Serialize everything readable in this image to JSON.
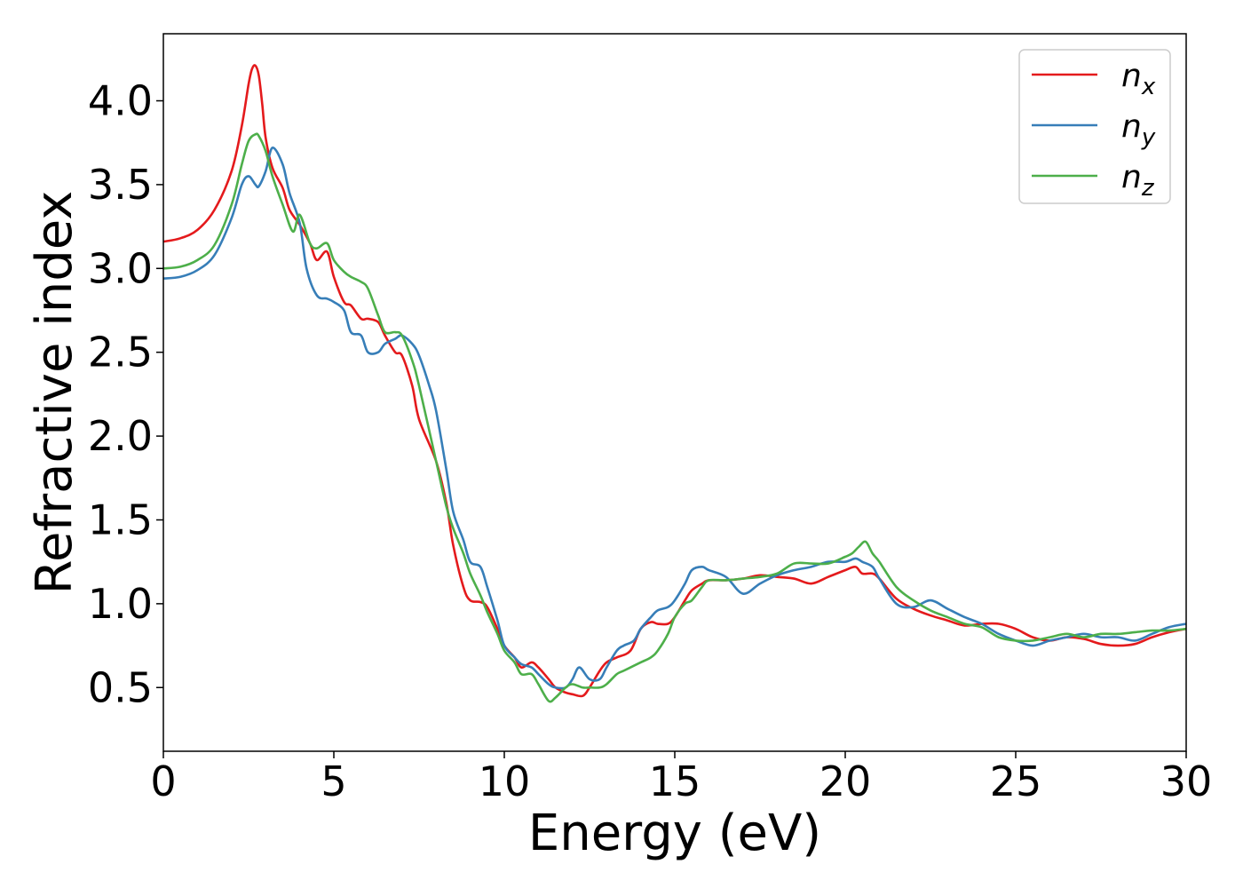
{
  "chart_data": {
    "type": "line",
    "xlabel": "Energy (eV)",
    "ylabel": "Refractive index",
    "xlim": [
      0,
      30
    ],
    "ylim": [
      0.12,
      4.4
    ],
    "xticks": [
      0,
      5,
      10,
      15,
      20,
      25,
      30
    ],
    "yticks": [
      0.5,
      1.0,
      1.5,
      2.0,
      2.5,
      3.0,
      3.5,
      4.0
    ],
    "xtick_labels": [
      "0",
      "5",
      "10",
      "15",
      "20",
      "25",
      "30"
    ],
    "ytick_labels": [
      "0.5",
      "1.0",
      "1.5",
      "2.0",
      "2.5",
      "3.0",
      "3.5",
      "4.0"
    ],
    "grid": false,
    "legend_position": "top-right",
    "series": [
      {
        "name": "n_x",
        "label_main": "n",
        "label_sub": "x",
        "color": "#e41a1c",
        "x": [
          0,
          0.5,
          1.0,
          1.5,
          2.0,
          2.3,
          2.5,
          2.6,
          2.7,
          2.8,
          2.9,
          3.0,
          3.2,
          3.5,
          3.7,
          4.0,
          4.3,
          4.5,
          4.8,
          5.0,
          5.3,
          5.5,
          5.8,
          6.0,
          6.3,
          6.5,
          6.8,
          7.0,
          7.3,
          7.5,
          8.0,
          8.3,
          8.5,
          8.8,
          9.0,
          9.3,
          9.5,
          9.8,
          10.0,
          10.3,
          10.5,
          10.8,
          11.0,
          11.3,
          11.5,
          11.8,
          12.0,
          12.3,
          12.5,
          12.8,
          13.0,
          13.3,
          13.7,
          14.0,
          14.3,
          14.5,
          14.8,
          15.0,
          15.3,
          15.5,
          15.8,
          16.0,
          16.5,
          17.0,
          17.5,
          18.0,
          18.5,
          19.0,
          19.5,
          20.0,
          20.3,
          20.5,
          20.8,
          21.0,
          21.5,
          22.0,
          22.5,
          23.0,
          23.5,
          24.0,
          24.5,
          25.0,
          25.5,
          26.0,
          26.5,
          27.0,
          27.5,
          28.0,
          28.5,
          29.0,
          29.5,
          30.0
        ],
        "y": [
          3.16,
          3.18,
          3.23,
          3.35,
          3.58,
          3.85,
          4.1,
          4.19,
          4.21,
          4.15,
          3.98,
          3.78,
          3.6,
          3.48,
          3.35,
          3.26,
          3.15,
          3.05,
          3.1,
          2.95,
          2.8,
          2.78,
          2.7,
          2.7,
          2.68,
          2.6,
          2.5,
          2.48,
          2.3,
          2.1,
          1.85,
          1.6,
          1.35,
          1.1,
          1.02,
          1.01,
          0.98,
          0.85,
          0.75,
          0.68,
          0.62,
          0.65,
          0.62,
          0.55,
          0.5,
          0.47,
          0.46,
          0.45,
          0.5,
          0.6,
          0.65,
          0.68,
          0.72,
          0.85,
          0.89,
          0.88,
          0.88,
          0.92,
          1.02,
          1.08,
          1.12,
          1.14,
          1.14,
          1.15,
          1.17,
          1.16,
          1.15,
          1.12,
          1.16,
          1.2,
          1.22,
          1.18,
          1.18,
          1.15,
          1.03,
          0.97,
          0.93,
          0.9,
          0.87,
          0.88,
          0.88,
          0.85,
          0.8,
          0.78,
          0.8,
          0.79,
          0.76,
          0.75,
          0.76,
          0.8,
          0.83,
          0.85
        ]
      },
      {
        "name": "n_y",
        "label_main": "n",
        "label_sub": "y",
        "color": "#377eb8",
        "x": [
          0,
          0.5,
          1.0,
          1.5,
          2.0,
          2.3,
          2.5,
          2.7,
          2.8,
          3.0,
          3.2,
          3.5,
          3.7,
          4.0,
          4.2,
          4.5,
          4.8,
          5.0,
          5.3,
          5.5,
          5.8,
          6.0,
          6.3,
          6.5,
          6.8,
          7.0,
          7.3,
          7.5,
          7.8,
          8.0,
          8.3,
          8.5,
          8.8,
          9.0,
          9.3,
          9.5,
          9.8,
          10.0,
          10.3,
          10.5,
          10.8,
          11.0,
          11.3,
          11.5,
          11.8,
          12.0,
          12.2,
          12.5,
          12.8,
          13.0,
          13.3,
          13.5,
          13.8,
          14.0,
          14.3,
          14.5,
          14.8,
          15.0,
          15.3,
          15.5,
          15.8,
          16.0,
          16.5,
          17.0,
          17.5,
          18.0,
          18.5,
          19.0,
          19.5,
          20.0,
          20.3,
          20.5,
          20.8,
          21.0,
          21.5,
          22.0,
          22.5,
          23.0,
          23.5,
          24.0,
          24.5,
          25.0,
          25.5,
          26.0,
          26.5,
          27.0,
          27.5,
          28.0,
          28.5,
          29.0,
          29.5,
          30.0
        ],
        "y": [
          2.94,
          2.95,
          2.99,
          3.08,
          3.3,
          3.5,
          3.55,
          3.5,
          3.49,
          3.58,
          3.72,
          3.62,
          3.45,
          3.27,
          3.0,
          2.84,
          2.82,
          2.8,
          2.75,
          2.62,
          2.6,
          2.5,
          2.5,
          2.55,
          2.58,
          2.6,
          2.55,
          2.48,
          2.3,
          2.15,
          1.8,
          1.55,
          1.38,
          1.25,
          1.22,
          1.1,
          0.9,
          0.75,
          0.68,
          0.64,
          0.62,
          0.58,
          0.52,
          0.5,
          0.5,
          0.55,
          0.62,
          0.55,
          0.55,
          0.62,
          0.72,
          0.75,
          0.78,
          0.85,
          0.92,
          0.96,
          0.98,
          1.02,
          1.12,
          1.2,
          1.22,
          1.2,
          1.16,
          1.06,
          1.12,
          1.17,
          1.2,
          1.22,
          1.25,
          1.25,
          1.27,
          1.25,
          1.22,
          1.15,
          1.0,
          0.98,
          1.02,
          0.97,
          0.92,
          0.88,
          0.82,
          0.78,
          0.75,
          0.78,
          0.8,
          0.82,
          0.8,
          0.8,
          0.78,
          0.82,
          0.86,
          0.88
        ]
      },
      {
        "name": "n_z",
        "label_main": "n",
        "label_sub": "z",
        "color": "#4daf4a",
        "x": [
          0,
          0.5,
          1.0,
          1.5,
          2.0,
          2.3,
          2.5,
          2.7,
          2.8,
          3.0,
          3.2,
          3.5,
          3.8,
          4.0,
          4.3,
          4.5,
          4.8,
          5.0,
          5.3,
          5.5,
          5.8,
          6.0,
          6.3,
          6.5,
          6.8,
          7.0,
          7.3,
          7.5,
          8.0,
          8.3,
          8.5,
          8.8,
          9.0,
          9.3,
          9.5,
          9.8,
          10.0,
          10.3,
          10.5,
          10.8,
          11.0,
          11.3,
          11.5,
          11.8,
          12.0,
          12.3,
          12.5,
          12.8,
          13.0,
          13.3,
          13.5,
          13.8,
          14.0,
          14.3,
          14.5,
          14.8,
          15.0,
          15.3,
          15.5,
          15.8,
          16.0,
          16.5,
          17.0,
          17.5,
          18.0,
          18.5,
          19.0,
          19.5,
          20.0,
          20.2,
          20.4,
          20.6,
          20.8,
          21.0,
          21.5,
          22.0,
          22.5,
          23.0,
          23.5,
          24.0,
          24.5,
          25.0,
          25.5,
          26.0,
          26.5,
          27.0,
          27.5,
          28.0,
          28.5,
          29.0,
          29.5,
          30.0
        ],
        "y": [
          3.0,
          3.01,
          3.05,
          3.14,
          3.38,
          3.62,
          3.76,
          3.8,
          3.79,
          3.7,
          3.55,
          3.38,
          3.22,
          3.32,
          3.15,
          3.12,
          3.15,
          3.05,
          2.98,
          2.95,
          2.92,
          2.88,
          2.72,
          2.62,
          2.62,
          2.6,
          2.45,
          2.3,
          1.85,
          1.58,
          1.45,
          1.3,
          1.18,
          1.05,
          0.95,
          0.82,
          0.72,
          0.65,
          0.58,
          0.58,
          0.52,
          0.42,
          0.44,
          0.5,
          0.52,
          0.5,
          0.5,
          0.5,
          0.52,
          0.58,
          0.6,
          0.63,
          0.65,
          0.68,
          0.72,
          0.82,
          0.92,
          1.0,
          1.02,
          1.1,
          1.14,
          1.14,
          1.15,
          1.16,
          1.18,
          1.24,
          1.24,
          1.24,
          1.28,
          1.3,
          1.34,
          1.37,
          1.3,
          1.25,
          1.1,
          1.02,
          0.96,
          0.92,
          0.88,
          0.86,
          0.8,
          0.78,
          0.78,
          0.8,
          0.82,
          0.8,
          0.82,
          0.82,
          0.83,
          0.84,
          0.84,
          0.85
        ]
      }
    ]
  }
}
